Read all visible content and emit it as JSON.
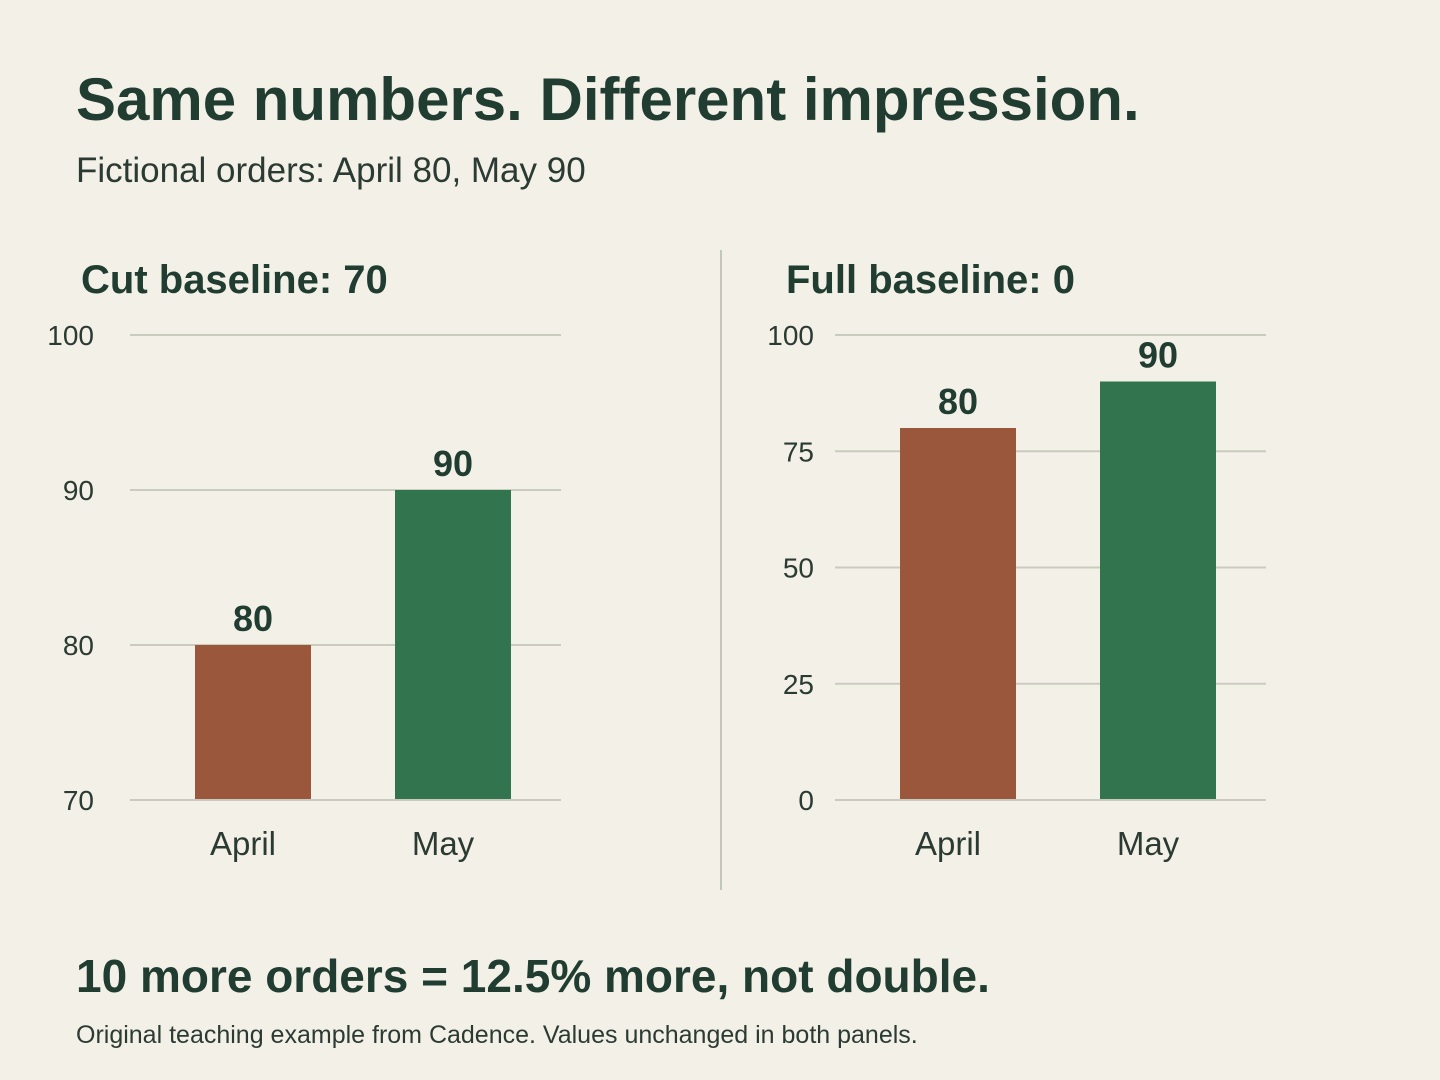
{
  "title": "Same numbers. Different impression.",
  "subtitle": "Fictional orders: April 80, May 90",
  "takeaway": "10 more orders = 12.5% more, not double.",
  "footnote": "Original teaching example from Cadence. Values unchanged in both panels.",
  "colors": {
    "background": "#f3f1e7",
    "text": "#213d32",
    "april_bar": "#9b573b",
    "may_bar": "#31744e",
    "gridline": "#c9cbbf",
    "divider": "#c3c6bb"
  },
  "chart_data": [
    {
      "type": "bar",
      "title": "Cut baseline: 70",
      "categories": [
        "April",
        "May"
      ],
      "values": [
        80,
        90
      ],
      "value_labels": [
        "80",
        "90"
      ],
      "ylim": [
        70,
        100
      ],
      "yticks": [
        70,
        80,
        90,
        100
      ],
      "ytick_labels": [
        "70",
        "80",
        "90",
        "100"
      ],
      "grid": true,
      "xlabel": "",
      "ylabel": ""
    },
    {
      "type": "bar",
      "title": "Full baseline: 0",
      "categories": [
        "April",
        "May"
      ],
      "values": [
        80,
        90
      ],
      "value_labels": [
        "80",
        "90"
      ],
      "ylim": [
        0,
        100
      ],
      "yticks": [
        0,
        25,
        50,
        75,
        100
      ],
      "ytick_labels": [
        "0",
        "25",
        "50",
        "75",
        "100"
      ],
      "grid": true,
      "xlabel": "",
      "ylabel": ""
    }
  ]
}
